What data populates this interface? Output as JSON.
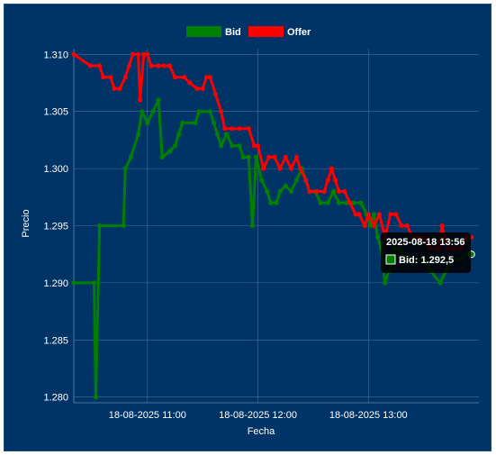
{
  "colors": {
    "background": "#003366",
    "border": "#1a4a7a",
    "grid": "#6a88b0",
    "bid": "#008000",
    "offer": "#ff0000",
    "text": "#ffffff",
    "tooltip_bg": "#000000"
  },
  "chart_data": {
    "type": "line",
    "xlabel": "Fecha",
    "ylabel": "Precio",
    "x_ticks": [
      "18-08-2025 11:00",
      "18-08-2025 12:00",
      "18-08-2025 13:00"
    ],
    "y_ticks": [
      "1.280",
      "1.285",
      "1.290",
      "1.295",
      "1.300",
      "1.305",
      "1.310"
    ],
    "ylim": [
      1.2795,
      1.3105
    ],
    "xlim": [
      "10:20",
      "14:00"
    ],
    "grid": true,
    "legend_position": "top",
    "series": [
      {
        "name": "Bid",
        "color": "#008000",
        "points": [
          [
            "10:20",
            1.29
          ],
          [
            "10:31",
            1.29
          ],
          [
            "10:32",
            1.28
          ],
          [
            "10:34",
            1.295
          ],
          [
            "10:47",
            1.295
          ],
          [
            "10:48",
            1.3
          ],
          [
            "10:51",
            1.301
          ],
          [
            "10:55",
            1.303
          ],
          [
            "10:57",
            1.305
          ],
          [
            "11:00",
            1.304
          ],
          [
            "11:03",
            1.305
          ],
          [
            "11:06",
            1.306
          ],
          [
            "11:08",
            1.301
          ],
          [
            "11:12",
            1.3015
          ],
          [
            "11:15",
            1.302
          ],
          [
            "11:17",
            1.303
          ],
          [
            "11:19",
            1.304
          ],
          [
            "11:26",
            1.304
          ],
          [
            "11:28",
            1.305
          ],
          [
            "11:34",
            1.305
          ],
          [
            "11:36",
            1.304
          ],
          [
            "11:38",
            1.303
          ],
          [
            "11:40",
            1.302
          ],
          [
            "11:43",
            1.303
          ],
          [
            "11:46",
            1.302
          ],
          [
            "11:50",
            1.302
          ],
          [
            "11:52",
            1.301
          ],
          [
            "11:55",
            1.301
          ],
          [
            "11:57",
            1.295
          ],
          [
            "11:59",
            1.301
          ],
          [
            "12:02",
            1.299
          ],
          [
            "12:05",
            1.298
          ],
          [
            "12:07",
            1.297
          ],
          [
            "12:10",
            1.297
          ],
          [
            "12:12",
            1.298
          ],
          [
            "12:15",
            1.2985
          ],
          [
            "12:18",
            1.298
          ],
          [
            "12:21",
            1.299
          ],
          [
            "12:24",
            1.3
          ],
          [
            "12:26",
            1.299
          ],
          [
            "12:28",
            1.298
          ],
          [
            "12:31",
            1.298
          ],
          [
            "12:34",
            1.297
          ],
          [
            "12:38",
            1.297
          ],
          [
            "12:41",
            1.298
          ],
          [
            "12:44",
            1.297
          ],
          [
            "12:48",
            1.297
          ],
          [
            "12:52",
            1.297
          ],
          [
            "12:56",
            1.297
          ],
          [
            "12:59",
            1.296
          ],
          [
            "13:01",
            1.295
          ],
          [
            "13:03",
            1.296
          ],
          [
            "13:05",
            1.294
          ],
          [
            "13:07",
            1.293
          ],
          [
            "13:09",
            1.29
          ],
          [
            "13:11",
            1.291
          ],
          [
            "13:14",
            1.293
          ],
          [
            "13:17",
            1.293
          ],
          [
            "13:20",
            1.292
          ],
          [
            "13:25",
            1.292
          ],
          [
            "13:30",
            1.292
          ],
          [
            "13:34",
            1.291
          ],
          [
            "13:39",
            1.29
          ],
          [
            "13:42",
            1.291
          ],
          [
            "13:45",
            1.292
          ],
          [
            "13:50",
            1.292
          ],
          [
            "13:53",
            1.2925
          ],
          [
            "13:56",
            1.2925
          ]
        ]
      },
      {
        "name": "Offer",
        "color": "#ff0000",
        "points": [
          [
            "10:20",
            1.31
          ],
          [
            "10:29",
            1.309
          ],
          [
            "10:34",
            1.309
          ],
          [
            "10:36",
            1.308
          ],
          [
            "10:40",
            1.308
          ],
          [
            "10:42",
            1.307
          ],
          [
            "10:45",
            1.307
          ],
          [
            "10:48",
            1.308
          ],
          [
            "10:50",
            1.309
          ],
          [
            "10:52",
            1.31
          ],
          [
            "10:55",
            1.31
          ],
          [
            "10:56",
            1.306
          ],
          [
            "10:58",
            1.31
          ],
          [
            "11:00",
            1.31
          ],
          [
            "11:02",
            1.309
          ],
          [
            "11:06",
            1.309
          ],
          [
            "11:09",
            1.309
          ],
          [
            "11:12",
            1.309
          ],
          [
            "11:15",
            1.308
          ],
          [
            "11:20",
            1.308
          ],
          [
            "11:23",
            1.3075
          ],
          [
            "11:27",
            1.307
          ],
          [
            "11:30",
            1.307
          ],
          [
            "11:32",
            1.308
          ],
          [
            "11:34",
            1.308
          ],
          [
            "11:37",
            1.3065
          ],
          [
            "11:40",
            1.305
          ],
          [
            "11:42",
            1.3035
          ],
          [
            "11:46",
            1.3035
          ],
          [
            "11:50",
            1.3035
          ],
          [
            "11:55",
            1.3035
          ],
          [
            "11:58",
            1.302
          ],
          [
            "12:00",
            1.302
          ],
          [
            "12:03",
            1.3
          ],
          [
            "12:06",
            1.301
          ],
          [
            "12:09",
            1.301
          ],
          [
            "12:12",
            1.3
          ],
          [
            "12:15",
            1.301
          ],
          [
            "12:18",
            1.3
          ],
          [
            "12:21",
            1.301
          ],
          [
            "12:23",
            1.3
          ],
          [
            "12:26",
            1.299
          ],
          [
            "12:28",
            1.298
          ],
          [
            "12:32",
            1.298
          ],
          [
            "12:36",
            1.298
          ],
          [
            "12:38",
            1.299
          ],
          [
            "12:40",
            1.3
          ],
          [
            "12:42",
            1.299
          ],
          [
            "12:44",
            1.298
          ],
          [
            "12:47",
            1.298
          ],
          [
            "12:50",
            1.297
          ],
          [
            "12:53",
            1.296
          ],
          [
            "12:55",
            1.296
          ],
          [
            "12:58",
            1.295
          ],
          [
            "13:00",
            1.296
          ],
          [
            "13:03",
            1.295
          ],
          [
            "13:06",
            1.296
          ],
          [
            "13:09",
            1.294
          ],
          [
            "13:12",
            1.296
          ],
          [
            "13:15",
            1.296
          ],
          [
            "13:18",
            1.295
          ],
          [
            "13:21",
            1.295
          ],
          [
            "13:24",
            1.294
          ],
          [
            "13:27",
            1.294
          ],
          [
            "13:30",
            1.294
          ],
          [
            "13:33",
            1.293
          ],
          [
            "13:38",
            1.293
          ],
          [
            "13:40",
            1.295
          ],
          [
            "13:43",
            1.293
          ],
          [
            "13:46",
            1.293
          ],
          [
            "13:50",
            1.293
          ],
          [
            "13:53",
            1.294
          ],
          [
            "13:56",
            1.294
          ]
        ]
      }
    ]
  },
  "tooltip": {
    "title": "2025-08-18 13:56",
    "label": "Bid: 1.292,5",
    "x": "13:56",
    "y": 1.2925
  }
}
